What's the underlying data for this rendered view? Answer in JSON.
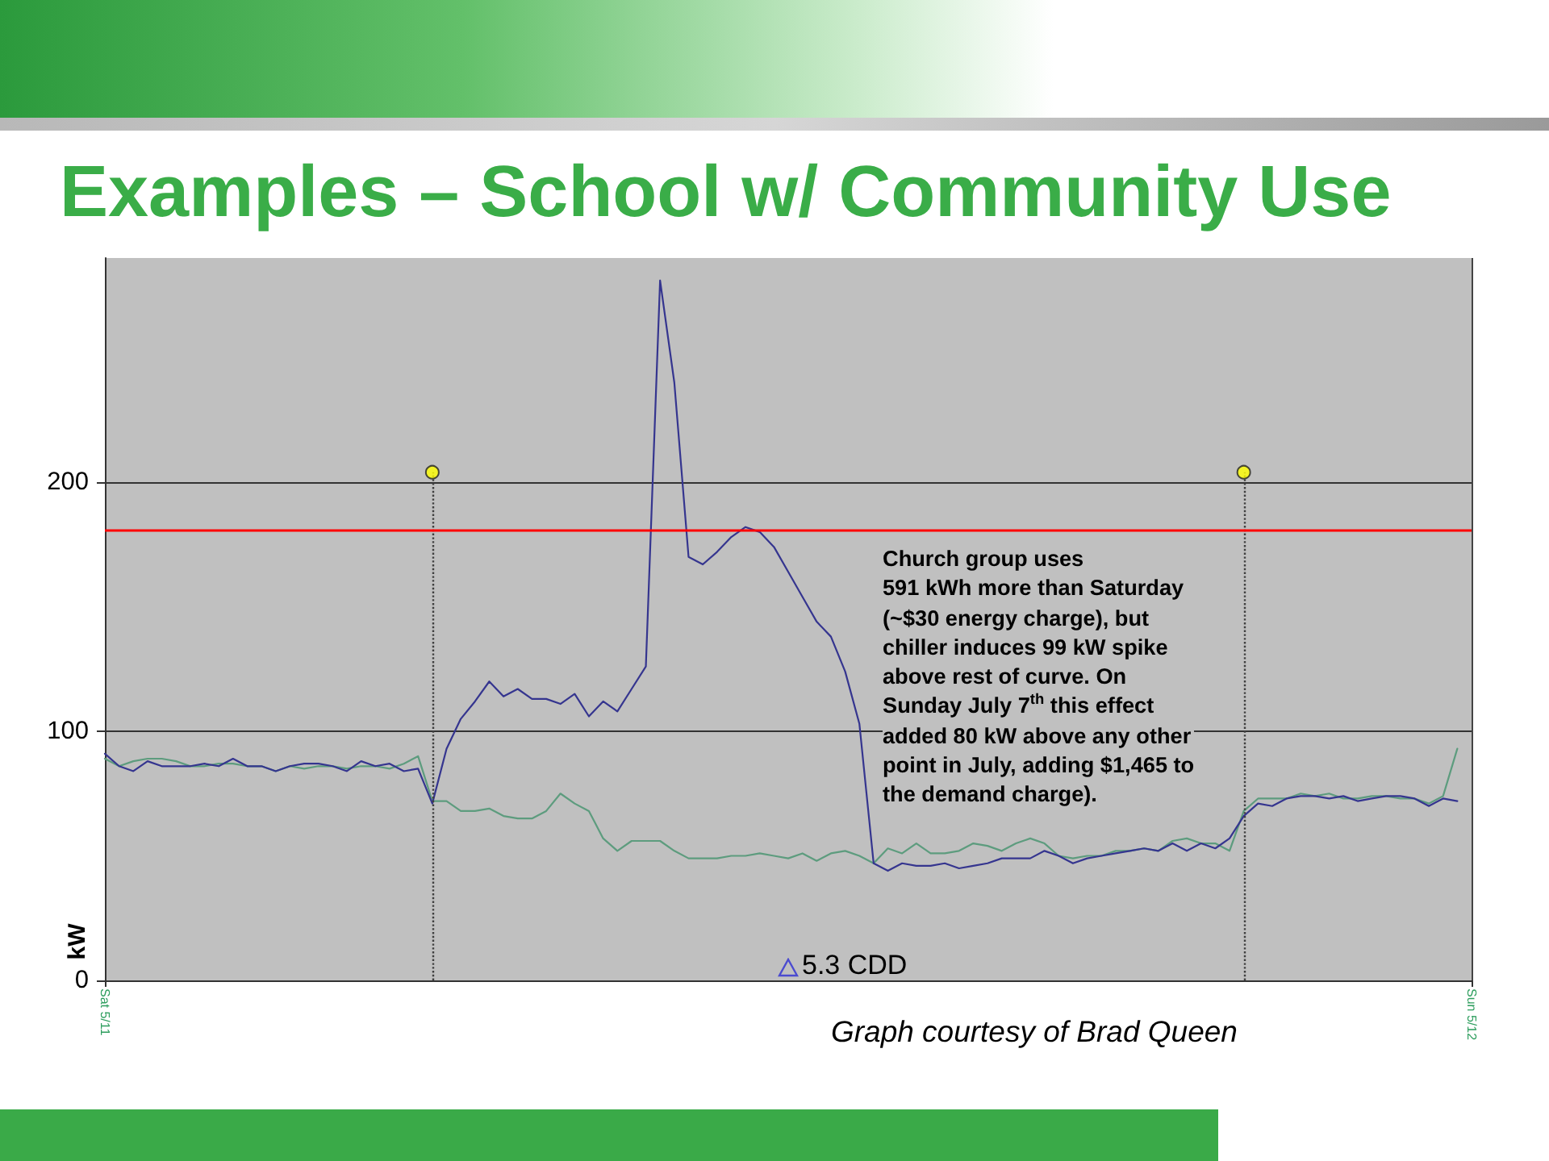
{
  "chart_data": {
    "type": "line",
    "title": "Examples – School w/ Community Use",
    "ylabel": "kW",
    "annotations": [
      "Church group uses\n591 kWh more than Saturday\n(~$30 energy charge), but\nchiller induces 99 kW spike\nabove rest of curve. On\nSunday July 7$^{th}$ this effect\nadded 80 kW above any other\npoint in July, adding $1,465 to\nthe demand charge).",
      "5.3 CDD",
      "Graph courtesy of Brad Queen"
    ],
    "categories": [
      "Sat 5/11",
      null,
      null,
      null,
      null,
      null,
      null,
      null,
      null,
      null,
      null,
      null,
      null,
      null,
      null,
      null,
      null,
      null,
      null,
      null,
      null,
      null,
      null,
      null,
      null,
      null,
      null,
      null,
      null,
      null,
      null,
      null,
      null,
      null,
      null,
      null,
      null,
      null,
      null,
      null,
      null,
      null,
      null,
      null,
      null,
      null,
      null,
      null,
      null,
      null,
      null,
      null,
      null,
      null,
      null,
      null,
      null,
      null,
      null,
      null,
      null,
      null,
      null,
      null,
      null,
      null,
      null,
      null,
      null,
      null,
      null,
      null,
      null,
      null,
      null,
      null,
      null,
      null,
      null,
      null,
      null,
      null,
      null,
      null,
      null,
      null,
      null,
      null,
      null,
      null,
      null,
      null,
      null,
      null,
      null,
      null,
      "Sun 5/12"
    ],
    "series": [
      {
        "color": "#5d9c7e",
        "values": [
          89,
          86,
          88,
          89,
          89,
          88,
          86,
          86,
          87,
          87,
          86,
          86,
          84,
          86,
          85,
          86,
          86,
          85,
          86,
          86,
          85,
          87,
          90,
          72,
          72,
          68,
          68,
          69,
          66,
          65,
          65,
          68,
          75,
          71,
          68,
          57,
          52,
          56,
          56,
          56,
          52,
          49,
          49,
          49,
          50,
          50,
          51,
          50,
          49,
          51,
          48,
          51,
          52,
          50,
          47,
          53,
          51,
          55,
          51,
          51,
          52,
          55,
          54,
          52,
          55,
          57,
          55,
          50,
          49,
          50,
          50,
          52,
          52,
          53,
          52,
          56,
          57,
          55,
          55,
          52,
          68,
          73,
          73,
          73,
          75,
          74,
          75,
          73,
          73,
          74,
          74,
          73,
          73,
          71,
          74,
          93,
          null
        ]
      },
      {
        "color": "#35358f",
        "values": [
          91,
          86,
          84,
          88,
          86,
          86,
          86,
          87,
          86,
          89,
          86,
          86,
          84,
          86,
          87,
          87,
          86,
          84,
          88,
          86,
          87,
          84,
          85,
          71,
          93,
          105,
          112,
          120,
          114,
          117,
          113,
          113,
          111,
          115,
          106,
          112,
          108,
          117,
          126,
          281,
          240,
          170,
          167,
          172,
          178,
          182,
          180,
          174,
          164,
          154,
          144,
          138,
          124,
          103,
          47,
          44,
          47,
          46,
          46,
          47,
          45,
          46,
          47,
          49,
          49,
          49,
          52,
          50,
          47,
          49,
          50,
          51,
          52,
          53,
          52,
          55,
          52,
          55,
          53,
          57,
          66,
          71,
          70,
          73,
          74,
          74,
          73,
          74,
          72,
          73,
          74,
          74,
          73,
          70,
          73,
          72,
          null
        ]
      },
      {
        "type": "lollipop",
        "marker": "circle",
        "line_style": "dotted",
        "color": "#ffff00",
        "values": [
          null,
          null,
          null,
          null,
          null,
          null,
          null,
          null,
          null,
          null,
          null,
          null,
          null,
          null,
          null,
          null,
          null,
          null,
          null,
          null,
          null,
          null,
          null,
          204,
          null,
          null,
          null,
          null,
          null,
          null,
          null,
          null,
          null,
          null,
          null,
          null,
          null,
          null,
          null,
          null,
          null,
          null,
          null,
          null,
          null,
          null,
          null,
          null,
          null,
          null,
          null,
          null,
          null,
          null,
          null,
          null,
          null,
          null,
          null,
          null,
          null,
          null,
          null,
          null,
          null,
          null,
          null,
          null,
          null,
          null,
          null,
          null,
          null,
          null,
          null,
          null,
          null,
          null,
          null,
          null,
          204,
          null,
          null,
          null,
          null,
          null,
          null,
          null,
          null,
          null,
          null,
          null,
          null,
          null,
          null,
          null,
          null
        ]
      }
    ],
    "ylim": [
      0,
      290
    ],
    "yticks": [
      0,
      100,
      200
    ],
    "grid": true,
    "marker": "none",
    "line_style": "solid",
    "ref_lines": [
      {
        "axis": "y",
        "value": 181,
        "color": "#ff0000",
        "line_style": "solid"
      }
    ]
  }
}
